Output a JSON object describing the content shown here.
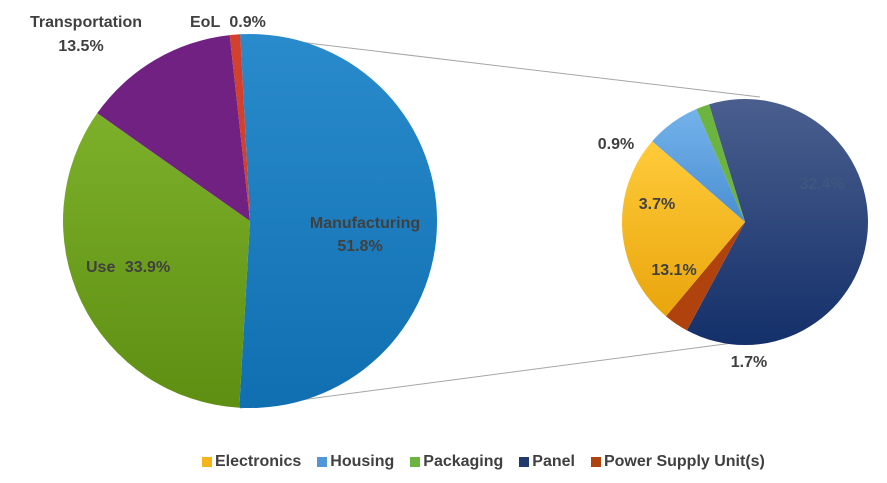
{
  "chart_data": [
    {
      "type": "pie",
      "slices": [
        {
          "label": "Manufacturing",
          "value": 51.8,
          "display": "51.8%",
          "color": "#1B7BBE"
        },
        {
          "label": "Use",
          "value": 33.9,
          "display": "33.9%",
          "color": "#6E9E1C"
        },
        {
          "label": "Transportation",
          "value": 13.5,
          "display": "13.5%",
          "color": "#702182"
        },
        {
          "label": "EoL",
          "value": 0.9,
          "display": "0.9%",
          "color": "#D2402E"
        }
      ]
    },
    {
      "type": "pie",
      "slices": [
        {
          "label": "Panel",
          "value": 32.4,
          "display": "32.4%",
          "color": "#1F3A6B"
        },
        {
          "label": "Power Supply Unit(s)",
          "value": 1.7,
          "display": "1.7%",
          "color": "#B0420D"
        },
        {
          "label": "Electronics",
          "value": 13.1,
          "display": "13.1%",
          "color": "#F5B419"
        },
        {
          "label": "Housing",
          "value": 3.7,
          "display": "3.7%",
          "color": "#4F97D8"
        },
        {
          "label": "Packaging",
          "value": 0.9,
          "display": "0.9%",
          "color": "#6CB33F"
        }
      ],
      "legend_position": "bottom",
      "legend": [
        {
          "label": "Electronics",
          "color": "#F5B419"
        },
        {
          "label": "Housing",
          "color": "#4F97D8"
        },
        {
          "label": "Packaging",
          "color": "#6CB33F"
        },
        {
          "label": "Panel",
          "color": "#1F3A6B"
        },
        {
          "label": "Power Supply Unit(s)",
          "color": "#B0420D"
        }
      ]
    }
  ]
}
